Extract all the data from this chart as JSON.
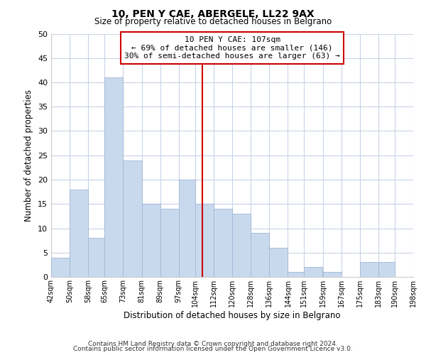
{
  "title": "10, PEN Y CAE, ABERGELE, LL22 9AX",
  "subtitle": "Size of property relative to detached houses in Belgrano",
  "xlabel": "Distribution of detached houses by size in Belgrano",
  "ylabel": "Number of detached properties",
  "bin_labels": [
    "42sqm",
    "50sqm",
    "58sqm",
    "65sqm",
    "73sqm",
    "81sqm",
    "89sqm",
    "97sqm",
    "104sqm",
    "112sqm",
    "120sqm",
    "128sqm",
    "136sqm",
    "144sqm",
    "151sqm",
    "159sqm",
    "167sqm",
    "175sqm",
    "183sqm",
    "190sqm",
    "198sqm"
  ],
  "bin_edges": [
    42,
    50,
    58,
    65,
    73,
    81,
    89,
    97,
    104,
    112,
    120,
    128,
    136,
    144,
    151,
    159,
    167,
    175,
    183,
    190,
    198
  ],
  "counts": [
    4,
    18,
    8,
    41,
    24,
    15,
    14,
    20,
    15,
    14,
    13,
    9,
    6,
    1,
    2,
    1,
    0,
    3,
    3,
    0
  ],
  "bar_color": "#c9d9ed",
  "bar_edge_color": "#a0b8d8",
  "property_line_x": 107,
  "property_line_color": "#cc0000",
  "annotation_line1": "10 PEN Y CAE: 107sqm",
  "annotation_line2": "← 69% of detached houses are smaller (146)",
  "annotation_line3": "30% of semi-detached houses are larger (63) →",
  "annotation_box_edge_color": "#cc0000",
  "annotation_box_fill": "#ffffff",
  "ylim": [
    0,
    50
  ],
  "yticks": [
    0,
    5,
    10,
    15,
    20,
    25,
    30,
    35,
    40,
    45,
    50
  ],
  "footer_line1": "Contains HM Land Registry data © Crown copyright and database right 2024.",
  "footer_line2": "Contains public sector information licensed under the Open Government Licence v3.0.",
  "background_color": "#ffffff",
  "grid_color": "#c8d4e8"
}
